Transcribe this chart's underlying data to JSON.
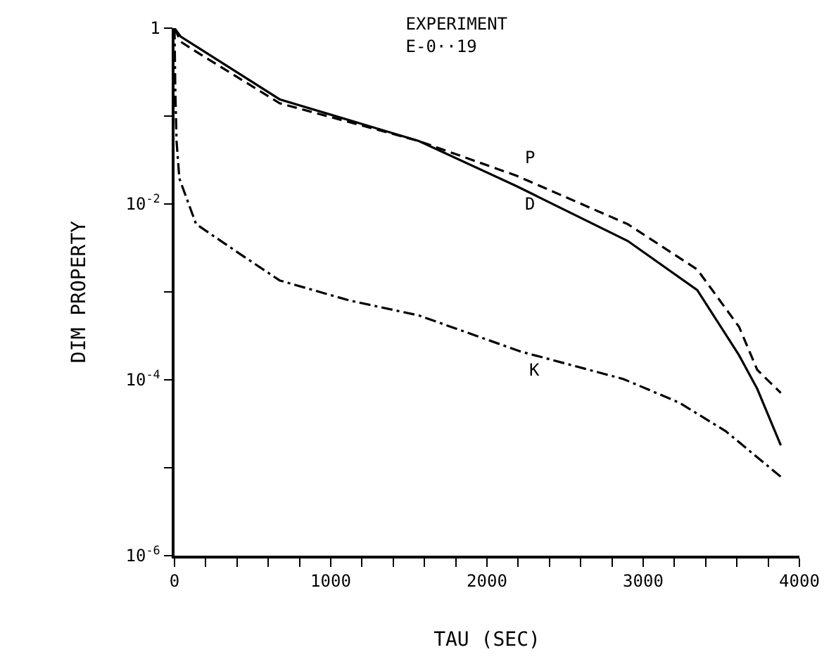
{
  "chart_data": {
    "type": "line",
    "title": "EXPERIMENT\nE-0··19",
    "xlabel": "TAU (SEC)",
    "ylabel": "DIM PROPERTY",
    "log": "y",
    "legend": false,
    "marker": "none",
    "xlim": [
      0,
      4000
    ],
    "ylim": [
      1e-06,
      1
    ],
    "xticks": [
      0,
      {
        "value": 200,
        "label": null
      },
      {
        "value": 400,
        "label": null
      },
      {
        "value": 600,
        "label": null
      },
      {
        "value": 800,
        "label": null
      },
      1000,
      {
        "value": 1200,
        "label": null
      },
      {
        "value": 1400,
        "label": null
      },
      {
        "value": 1600,
        "label": null
      },
      {
        "value": 1800,
        "label": null
      },
      2000,
      {
        "value": 2200,
        "label": null
      },
      {
        "value": 2400,
        "label": null
      },
      {
        "value": 2600,
        "label": null
      },
      {
        "value": 2800,
        "label": null
      },
      3000,
      {
        "value": 3200,
        "label": null
      },
      {
        "value": 3400,
        "label": null
      },
      {
        "value": 3600,
        "label": null
      },
      {
        "value": 3800,
        "label": null
      },
      4000
    ],
    "yticks": [
      {
        "value": 1e-06,
        "label": "10$^{-6}$"
      },
      {
        "value": 1e-05,
        "label": null
      },
      {
        "value": 0.0001,
        "label": "10$^{-4}$"
      },
      {
        "value": 0.001,
        "label": null
      },
      {
        "value": 0.01,
        "label": "10$^{-2}$"
      },
      {
        "value": 0.1,
        "label": null
      },
      1
    ],
    "series": [
      {
        "name": "P",
        "color": "#000000",
        "line_style": "dashed",
        "x": [
          0,
          40,
          138,
          673,
          1564,
          2188,
          2901,
          3346,
          3614,
          3730,
          3881
        ],
        "values": [
          1,
          0.7,
          0.54,
          0.14,
          0.052,
          0.021,
          0.0059,
          0.0018,
          0.0004,
          0.00013,
          7.1e-05
        ]
      },
      {
        "name": "D",
        "color": "#000000",
        "line_style": "solid",
        "x": [
          0,
          40,
          138,
          673,
          1564,
          2188,
          2901,
          3346,
          3614,
          3730,
          3881
        ],
        "values": [
          1,
          0.8,
          0.62,
          0.155,
          0.052,
          0.016,
          0.0038,
          0.00105,
          0.00019,
          7.9e-05,
          1.8e-05
        ]
      },
      {
        "name": "K",
        "color": "#000000",
        "line_style": "dashdot",
        "x": [
          0,
          5,
          13,
          31,
          138,
          406,
          673,
          1118,
          1564,
          2215,
          2366,
          2874,
          3231,
          3529,
          3881
        ],
        "values": [
          1,
          0.2,
          0.052,
          0.0195,
          0.0059,
          0.0028,
          0.00135,
          0.0008,
          0.00054,
          0.00021,
          0.000178,
          0.000102,
          5.5e-05,
          2.6e-05,
          7.9e-06
        ]
      }
    ]
  }
}
